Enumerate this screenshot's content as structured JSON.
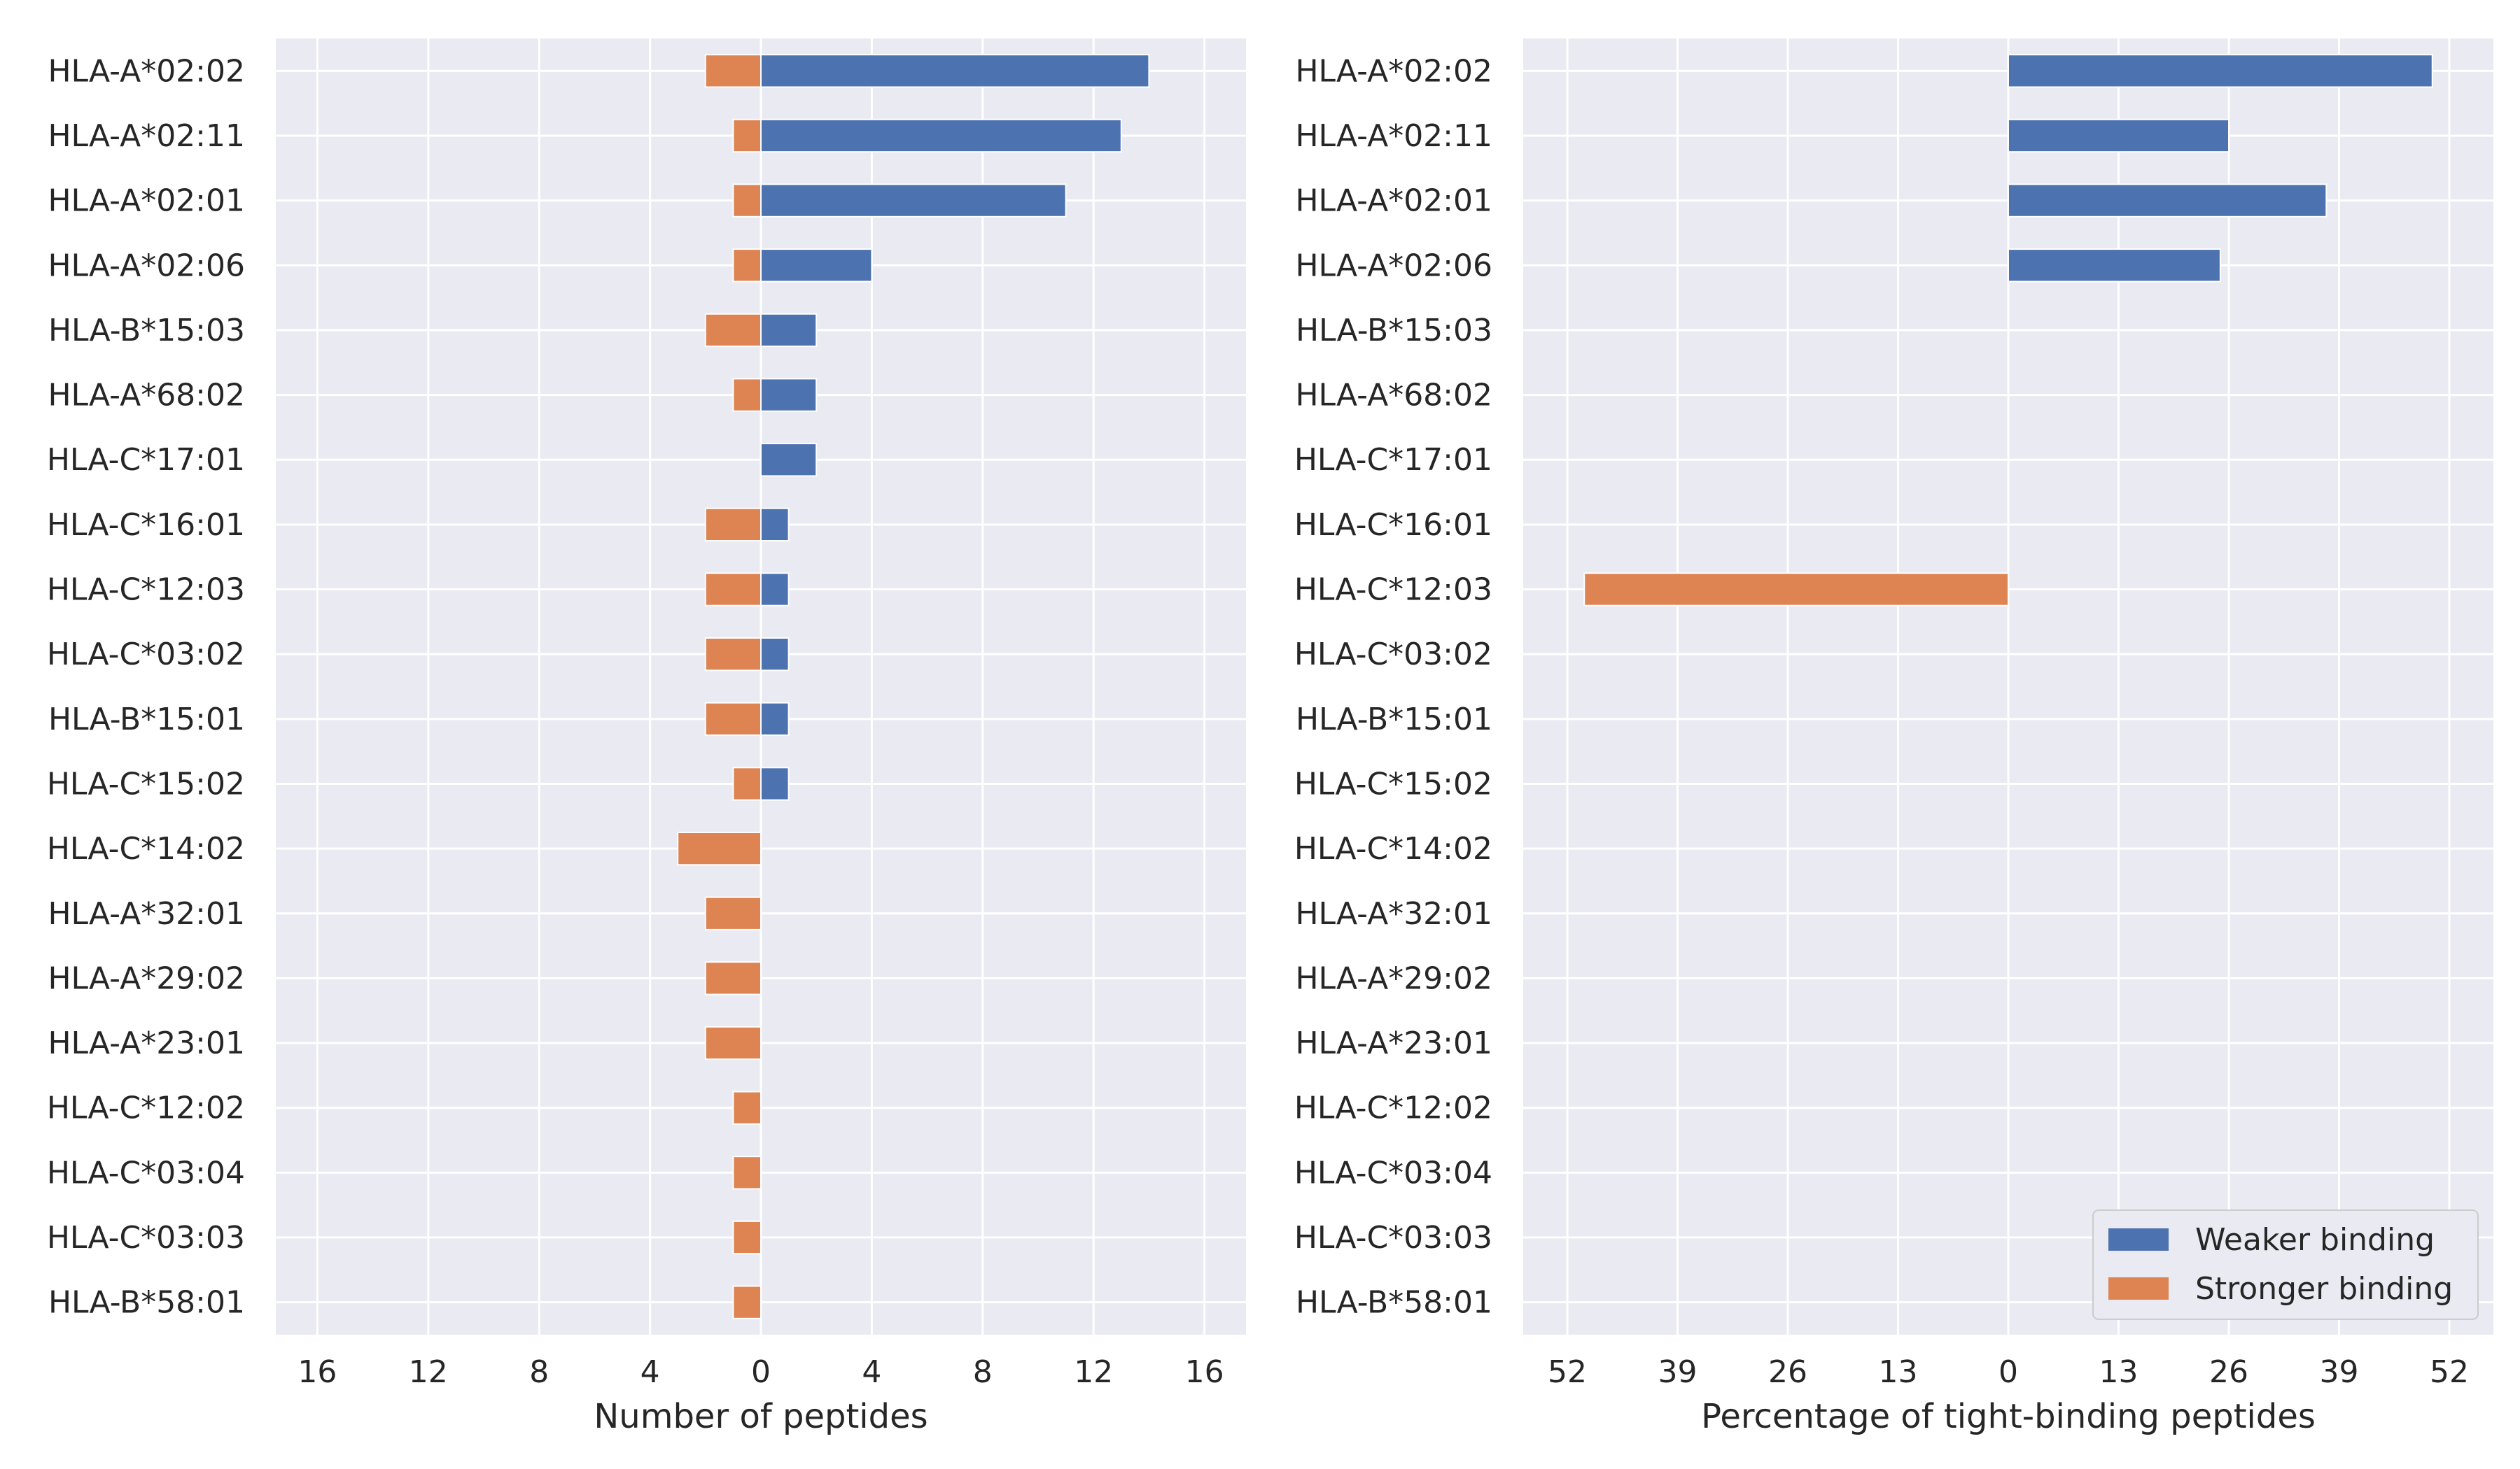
{
  "chart_data": [
    {
      "type": "bar",
      "orientation": "horizontal-diverging",
      "xlabel": "Number of peptides",
      "ylabel": "",
      "title": "",
      "xlim": [
        -17.5,
        17.5
      ],
      "xticks": [
        -16,
        -12,
        -8,
        -4,
        0,
        4,
        8,
        12,
        16
      ],
      "xtick_labels": [
        "16",
        "12",
        "8",
        "4",
        "0",
        "4",
        "8",
        "12",
        "16"
      ],
      "grid": true,
      "categories": [
        "HLA-A*02:02",
        "HLA-A*02:11",
        "HLA-A*02:01",
        "HLA-A*02:06",
        "HLA-B*15:03",
        "HLA-A*68:02",
        "HLA-C*17:01",
        "HLA-C*16:01",
        "HLA-C*12:03",
        "HLA-C*03:02",
        "HLA-B*15:01",
        "HLA-C*15:02",
        "HLA-C*14:02",
        "HLA-A*32:01",
        "HLA-A*29:02",
        "HLA-A*23:01",
        "HLA-C*12:02",
        "HLA-C*03:04",
        "HLA-C*03:03",
        "HLA-B*58:01"
      ],
      "series": [
        {
          "name": "Weaker binding",
          "color": "#4c72b0",
          "values": [
            14,
            13,
            11,
            4,
            2,
            2,
            2,
            1,
            1,
            1,
            1,
            1,
            0,
            0,
            0,
            0,
            0,
            0,
            0,
            0
          ]
        },
        {
          "name": "Stronger binding",
          "color": "#dd8452",
          "values": [
            2,
            1,
            1,
            1,
            2,
            1,
            0,
            2,
            2,
            2,
            2,
            1,
            3,
            2,
            2,
            2,
            1,
            1,
            1,
            1
          ]
        }
      ]
    },
    {
      "type": "bar",
      "orientation": "horizontal-diverging",
      "xlabel": "Percentage of tight-binding peptides",
      "ylabel": "",
      "title": "",
      "xlim": [
        -57.2,
        57.2
      ],
      "xticks": [
        -52,
        -39,
        -26,
        -13,
        0,
        13,
        26,
        39,
        52
      ],
      "xtick_labels": [
        "52",
        "39",
        "26",
        "13",
        "0",
        "13",
        "26",
        "39",
        "52"
      ],
      "grid": true,
      "legend_position": "bottom-right",
      "categories": [
        "HLA-A*02:02",
        "HLA-A*02:11",
        "HLA-A*02:01",
        "HLA-A*02:06",
        "HLA-B*15:03",
        "HLA-A*68:02",
        "HLA-C*17:01",
        "HLA-C*16:01",
        "HLA-C*12:03",
        "HLA-C*03:02",
        "HLA-B*15:01",
        "HLA-C*15:02",
        "HLA-C*14:02",
        "HLA-A*32:01",
        "HLA-A*29:02",
        "HLA-A*23:01",
        "HLA-C*12:02",
        "HLA-C*03:04",
        "HLA-C*03:03",
        "HLA-B*58:01"
      ],
      "series": [
        {
          "name": "Weaker binding",
          "color": "#4c72b0",
          "values": [
            50,
            26,
            37.5,
            25,
            0,
            0,
            0,
            0,
            0,
            0,
            0,
            0,
            0,
            0,
            0,
            0,
            0,
            0,
            0,
            0
          ]
        },
        {
          "name": "Stronger binding",
          "color": "#dd8452",
          "values": [
            0,
            0,
            0,
            0,
            0,
            0,
            0,
            0,
            50,
            0,
            0,
            0,
            0,
            0,
            0,
            0,
            0,
            0,
            0,
            0
          ]
        }
      ]
    }
  ],
  "legend": {
    "position": "bottom-right",
    "items": [
      {
        "label": "Weaker binding",
        "color": "#4c72b0"
      },
      {
        "label": "Stronger binding",
        "color": "#dd8452"
      }
    ]
  },
  "style": {
    "plot_background": "#eaeaf2",
    "grid_color": "#ffffff",
    "text_color": "#262626"
  }
}
